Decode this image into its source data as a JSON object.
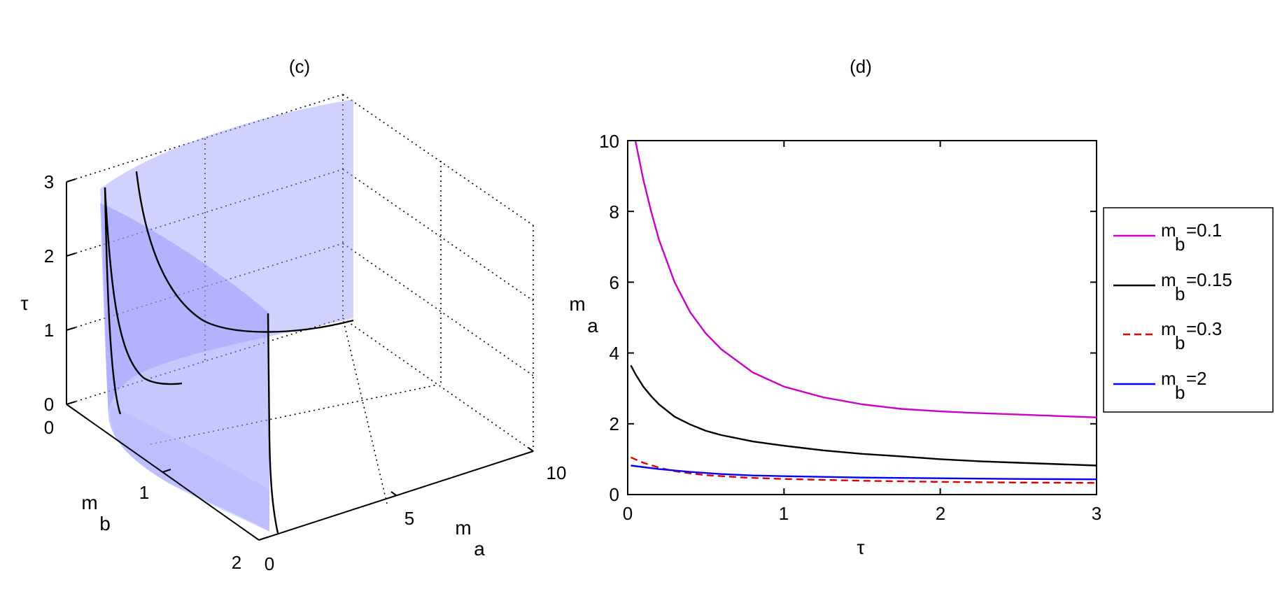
{
  "chart_data": [
    {
      "type": "surface3d",
      "panel_label": "(c)",
      "xlabel_main": "m",
      "xlabel_sub": "a",
      "ylabel_main": "m",
      "ylabel_sub": "b",
      "zlabel": "τ",
      "x_ticks": [
        "0",
        "5",
        "10"
      ],
      "y_ticks": [
        "0",
        "1",
        "2"
      ],
      "z_ticks": [
        "0",
        "1",
        "2",
        "3"
      ],
      "xlim": [
        0,
        10
      ],
      "ylim": [
        0,
        2
      ],
      "zlim": [
        0,
        3
      ],
      "surface_color": "#9999ff",
      "curve_color": "#000000",
      "grid": true,
      "curves": [
        {
          "name": "m_b=0.15",
          "m_b": 0.15
        },
        {
          "name": "m_b=0.1",
          "m_b": 0.1
        },
        {
          "name": "m_b=2",
          "m_b": 2
        }
      ]
    },
    {
      "type": "line",
      "panel_label": "(d)",
      "xlabel": "τ",
      "ylabel_main": "m",
      "ylabel_sub": "a",
      "xlim": [
        0,
        3
      ],
      "ylim": [
        0,
        10
      ],
      "x_ticks": [
        "0",
        "1",
        "2",
        "3"
      ],
      "y_ticks": [
        "0",
        "2",
        "4",
        "6",
        "8",
        "10"
      ],
      "legend_position": "outside-right",
      "series": [
        {
          "name_main": "m",
          "name_sub": "b",
          "name_tail": "=0.1",
          "color": "#cc00cc",
          "dash": "",
          "x": [
            0.05,
            0.1,
            0.15,
            0.2,
            0.3,
            0.4,
            0.5,
            0.6,
            0.8,
            1.0,
            1.25,
            1.5,
            1.75,
            2.0,
            2.25,
            2.5,
            2.75,
            3.0
          ],
          "y": [
            9.98,
            8.9,
            8.0,
            7.2,
            6.0,
            5.15,
            4.55,
            4.1,
            3.45,
            3.05,
            2.75,
            2.55,
            2.42,
            2.35,
            2.3,
            2.26,
            2.22,
            2.18
          ]
        },
        {
          "name_main": "m",
          "name_sub": "b",
          "name_tail": "=0.15",
          "color": "#000000",
          "dash": "",
          "x": [
            0.02,
            0.05,
            0.1,
            0.15,
            0.2,
            0.3,
            0.4,
            0.5,
            0.6,
            0.8,
            1.0,
            1.25,
            1.5,
            1.75,
            2.0,
            2.25,
            2.5,
            2.75,
            3.0
          ],
          "y": [
            3.65,
            3.4,
            3.05,
            2.78,
            2.55,
            2.2,
            1.98,
            1.8,
            1.68,
            1.5,
            1.38,
            1.25,
            1.15,
            1.08,
            1.0,
            0.94,
            0.9,
            0.86,
            0.82
          ]
        },
        {
          "name_main": "m",
          "name_sub": "b",
          "name_tail": "=0.3",
          "color": "#dd0000",
          "dash": "10,6",
          "x": [
            0.02,
            0.1,
            0.2,
            0.3,
            0.4,
            0.5,
            0.75,
            1.0,
            1.5,
            2.0,
            2.5,
            3.0
          ],
          "y": [
            1.05,
            0.9,
            0.76,
            0.66,
            0.6,
            0.55,
            0.48,
            0.44,
            0.39,
            0.36,
            0.34,
            0.33
          ]
        },
        {
          "name_main": "m",
          "name_sub": "b",
          "name_tail": "=2",
          "color": "#0000ff",
          "dash": "",
          "x": [
            0.02,
            0.2,
            0.4,
            0.6,
            0.8,
            1.0,
            1.5,
            2.0,
            2.5,
            3.0
          ],
          "y": [
            0.82,
            0.72,
            0.64,
            0.58,
            0.54,
            0.52,
            0.48,
            0.46,
            0.44,
            0.43
          ]
        }
      ]
    }
  ]
}
